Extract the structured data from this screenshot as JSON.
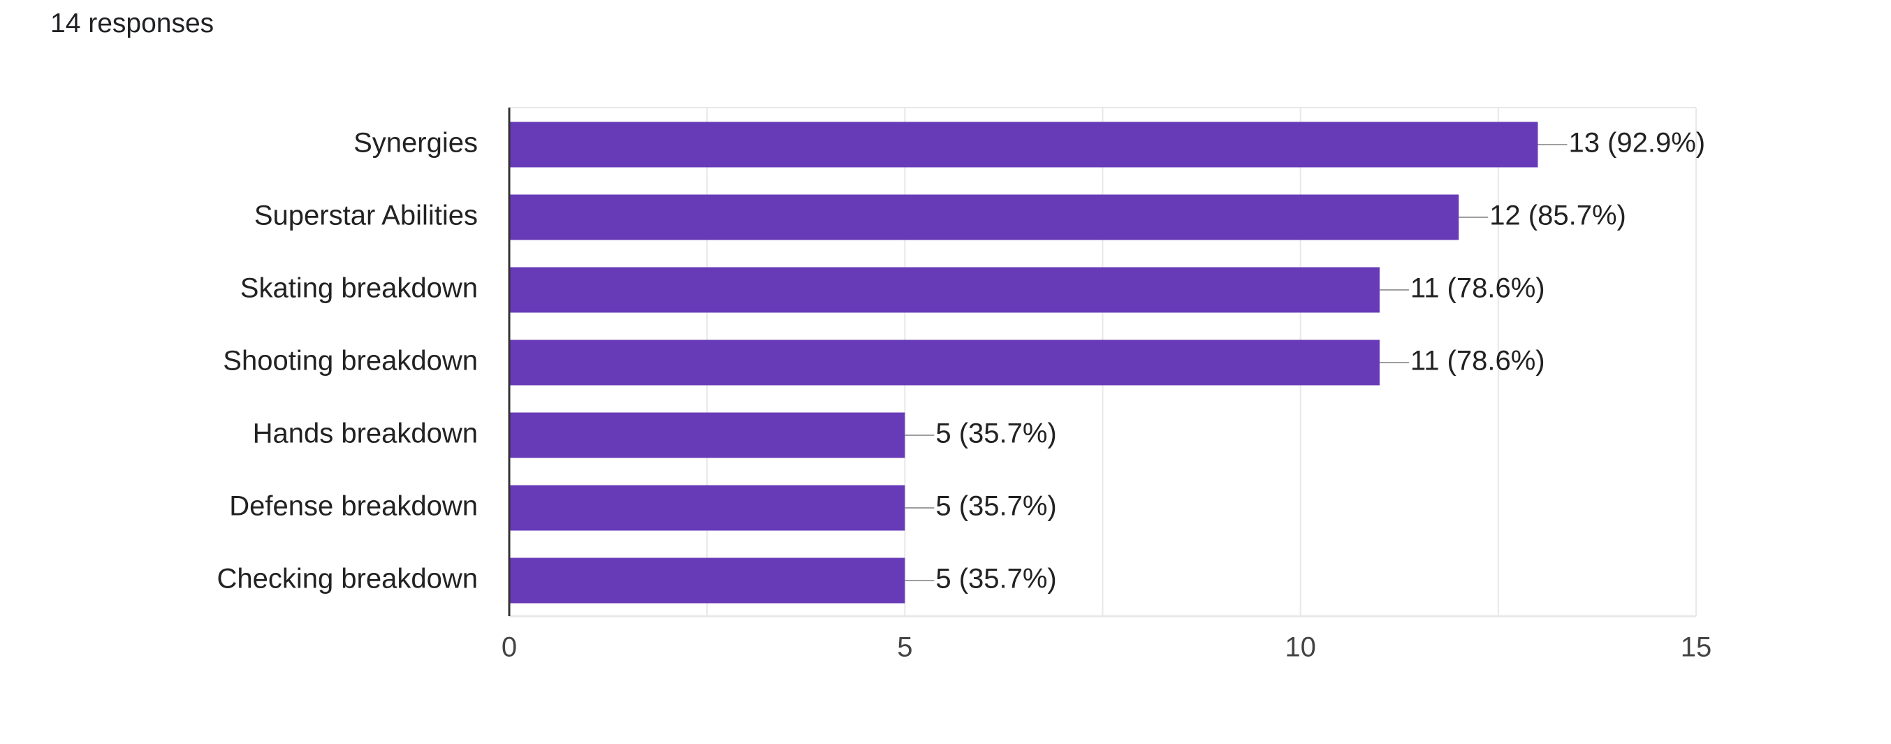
{
  "header": {
    "response_count": "14 responses"
  },
  "colors": {
    "bar": "#673ab7",
    "gridline": "#e8e8e8",
    "axis": "#333333",
    "connector": "#9e9e9e",
    "text": "#222222"
  },
  "chart_data": {
    "type": "bar",
    "orientation": "horizontal",
    "categories": [
      "Synergies",
      "Superstar Abilities",
      "Skating breakdown",
      "Shooting breakdown",
      "Hands breakdown",
      "Defense breakdown",
      "Checking breakdown"
    ],
    "values": [
      13,
      12,
      11,
      11,
      5,
      5,
      5
    ],
    "value_labels": [
      "13 (92.9%)",
      "12 (85.7%)",
      "11 (78.6%)",
      "11 (78.6%)",
      "5 (35.7%)",
      "5 (35.7%)",
      "5 (35.7%)"
    ],
    "xlim": [
      0,
      15
    ],
    "x_ticks": [
      0,
      5,
      10,
      15
    ],
    "x_tick_labels": [
      "0",
      "5",
      "10",
      "15"
    ],
    "grid": true,
    "legend": "none"
  }
}
